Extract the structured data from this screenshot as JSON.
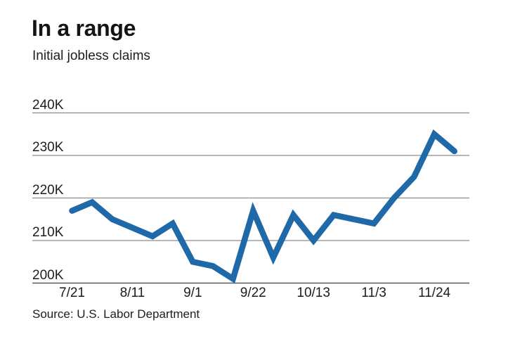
{
  "header": {
    "title": "In a range",
    "subtitle": "Initial jobless claims"
  },
  "footer": {
    "source": "Source: U.S. Labor Department"
  },
  "colors": {
    "line": "#2069a8",
    "grid": "#8c8c8c",
    "axis": "#5a5a5a",
    "text": "#1d1d1d",
    "background": "#ffffff"
  },
  "chart_data": {
    "type": "line",
    "title": "In a range",
    "subtitle": "Initial jobless claims",
    "source": "Source: U.S. Labor Department",
    "series_name": "Initial jobless claims",
    "unit": "thousands of claims (K)",
    "x": [
      "7/21",
      "7/28",
      "8/4",
      "8/11",
      "8/18",
      "8/25",
      "9/1",
      "9/8",
      "9/15",
      "9/22",
      "9/29",
      "10/6",
      "10/13",
      "10/20",
      "10/27",
      "11/3",
      "11/10",
      "11/17",
      "11/24",
      "12/1"
    ],
    "values": [
      217,
      219,
      215,
      213,
      211,
      214,
      205,
      204,
      201,
      217,
      206,
      216,
      210,
      216,
      215,
      214,
      220,
      225,
      235,
      231
    ],
    "x_tick_indices": [
      0,
      3,
      6,
      9,
      12,
      15,
      18
    ],
    "x_tick_labels": [
      "7/21",
      "8/11",
      "9/1",
      "9/22",
      "10/13",
      "11/3",
      "11/24"
    ],
    "y_tick_values": [
      200,
      210,
      220,
      230,
      240
    ],
    "y_tick_labels": [
      "200K",
      "210K",
      "220K",
      "230K",
      "240K"
    ],
    "ylim": [
      198,
      242
    ],
    "grid": "horizontal",
    "legend_position": "none"
  }
}
